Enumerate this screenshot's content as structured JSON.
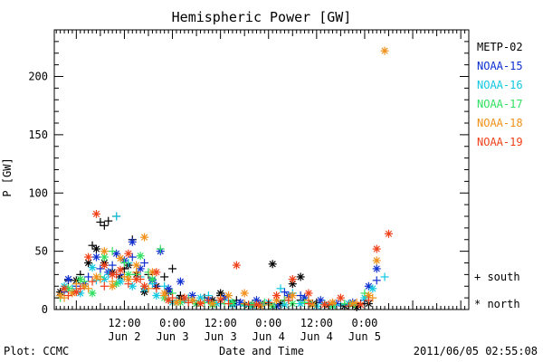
{
  "chart_data": {
    "type": "scatter",
    "title": "Hemispheric Power [GW]",
    "ylabel": "P [GW]",
    "xlabel": "Date and Time",
    "x_unit": "hours from 2011-06-01 00:00 UT",
    "xlim": [
      18.5,
      122
    ],
    "ylim": [
      0,
      240
    ],
    "y_ticks": [
      0,
      50,
      100,
      150,
      200
    ],
    "x_ticks": [
      {
        "x": 36,
        "time": "12:00",
        "date": "Jun 2"
      },
      {
        "x": 48,
        "time": "0:00",
        "date": "Jun 3"
      },
      {
        "x": 60,
        "time": "12:00",
        "date": "Jun 3"
      },
      {
        "x": 72,
        "time": "0:00",
        "date": "Jun 4"
      },
      {
        "x": 84,
        "time": "12:00",
        "date": "Jun 4"
      },
      {
        "x": 96,
        "time": "0:00",
        "date": "Jun 5"
      }
    ],
    "grid": false,
    "marker_legend": [
      {
        "marker": "plus",
        "label": "+ south"
      },
      {
        "marker": "star",
        "label": "* north"
      }
    ],
    "series": [
      {
        "name": "METP-02",
        "color": "#000000",
        "south": [
          [
            22,
            25
          ],
          [
            25,
            30
          ],
          [
            28,
            55
          ],
          [
            30,
            75
          ],
          [
            31,
            72
          ],
          [
            32,
            76
          ],
          [
            34,
            80
          ],
          [
            36,
            35
          ],
          [
            38,
            60
          ],
          [
            42,
            30
          ],
          [
            46,
            28
          ],
          [
            48,
            35
          ],
          [
            50,
            12
          ],
          [
            53,
            8
          ],
          [
            56,
            10
          ],
          [
            60,
            12
          ],
          [
            64,
            8
          ],
          [
            68,
            5
          ],
          [
            72,
            5
          ],
          [
            76,
            8
          ],
          [
            80,
            8
          ],
          [
            84,
            6
          ],
          [
            88,
            5
          ],
          [
            92,
            4
          ],
          [
            95,
            5
          ]
        ],
        "north": [
          [
            20,
            15
          ],
          [
            24,
            25
          ],
          [
            27,
            40
          ],
          [
            29,
            52
          ],
          [
            31,
            40
          ],
          [
            33,
            32
          ],
          [
            35,
            28
          ],
          [
            37,
            38
          ],
          [
            39,
            30
          ],
          [
            41,
            15
          ],
          [
            44,
            20
          ],
          [
            47,
            15
          ],
          [
            50,
            10
          ],
          [
            54,
            5
          ],
          [
            58,
            8
          ],
          [
            60,
            14
          ],
          [
            63,
            5
          ],
          [
            67,
            4
          ],
          [
            70,
            5
          ],
          [
            73,
            39
          ],
          [
            75,
            5
          ],
          [
            78,
            22
          ],
          [
            80,
            28
          ],
          [
            83,
            5
          ],
          [
            87,
            4
          ],
          [
            91,
            3
          ],
          [
            94,
            2
          ],
          [
            97,
            5
          ]
        ]
      },
      {
        "name": "NOAA-15",
        "color": "#1030d0",
        "south": [
          [
            21,
            15
          ],
          [
            24,
            20
          ],
          [
            27,
            28
          ],
          [
            30,
            35
          ],
          [
            33,
            38
          ],
          [
            35,
            30
          ],
          [
            38,
            45
          ],
          [
            41,
            40
          ],
          [
            44,
            20
          ],
          [
            47,
            15
          ],
          [
            50,
            8
          ],
          [
            55,
            6
          ],
          [
            60,
            5
          ],
          [
            64,
            4
          ],
          [
            70,
            5
          ],
          [
            76,
            15
          ],
          [
            80,
            12
          ],
          [
            86,
            5
          ],
          [
            92,
            4
          ],
          [
            96,
            8
          ],
          [
            99,
            25
          ]
        ],
        "north": [
          [
            22,
            26
          ],
          [
            26,
            22
          ],
          [
            29,
            45
          ],
          [
            32,
            32
          ],
          [
            34,
            48
          ],
          [
            36,
            42
          ],
          [
            38,
            58
          ],
          [
            40,
            35
          ],
          [
            43,
            25
          ],
          [
            45,
            50
          ],
          [
            47,
            18
          ],
          [
            50,
            24
          ],
          [
            53,
            12
          ],
          [
            57,
            8
          ],
          [
            61,
            10
          ],
          [
            65,
            6
          ],
          [
            69,
            8
          ],
          [
            74,
            3
          ],
          [
            77,
            12
          ],
          [
            81,
            10
          ],
          [
            85,
            8
          ],
          [
            89,
            5
          ],
          [
            93,
            6
          ],
          [
            97,
            20
          ],
          [
            99,
            35
          ]
        ]
      },
      {
        "name": "NOAA-16",
        "color": "#10c8e0",
        "south": [
          [
            20,
            12
          ],
          [
            23,
            18
          ],
          [
            26,
            20
          ],
          [
            29,
            25
          ],
          [
            32,
            30
          ],
          [
            34,
            80
          ],
          [
            37,
            40
          ],
          [
            40,
            28
          ],
          [
            43,
            22
          ],
          [
            46,
            20
          ],
          [
            49,
            8
          ],
          [
            52,
            10
          ],
          [
            57,
            12
          ],
          [
            62,
            8
          ],
          [
            66,
            3
          ],
          [
            71,
            4
          ],
          [
            75,
            18
          ],
          [
            78,
            14
          ],
          [
            82,
            6
          ],
          [
            86,
            5
          ],
          [
            90,
            4
          ],
          [
            93,
            5
          ],
          [
            97,
            8
          ],
          [
            101,
            28
          ]
        ],
        "north": [
          [
            21,
            20
          ],
          [
            25,
            14
          ],
          [
            28,
            36
          ],
          [
            31,
            26
          ],
          [
            35,
            24
          ],
          [
            38,
            20
          ],
          [
            41,
            18
          ],
          [
            44,
            12
          ],
          [
            48,
            6
          ],
          [
            51,
            8
          ],
          [
            55,
            10
          ],
          [
            59,
            5
          ],
          [
            63,
            4
          ],
          [
            68,
            3
          ],
          [
            72,
            6
          ],
          [
            76,
            4
          ],
          [
            80,
            5
          ],
          [
            84,
            3
          ],
          [
            88,
            4
          ],
          [
            92,
            5
          ],
          [
            96,
            10
          ],
          [
            98,
            18
          ]
        ]
      },
      {
        "name": "NOAA-17",
        "color": "#30e060",
        "south": [
          [
            20,
            10
          ],
          [
            23,
            16
          ],
          [
            26,
            24
          ],
          [
            30,
            28
          ],
          [
            33,
            50
          ],
          [
            36,
            40
          ],
          [
            39,
            30
          ],
          [
            42,
            32
          ],
          [
            45,
            52
          ],
          [
            48,
            14
          ],
          [
            52,
            8
          ],
          [
            56,
            6
          ],
          [
            61,
            5
          ],
          [
            66,
            4
          ],
          [
            71,
            6
          ],
          [
            76,
            8
          ],
          [
            81,
            6
          ],
          [
            86,
            4
          ],
          [
            91,
            5
          ],
          [
            96,
            14
          ]
        ],
        "north": [
          [
            22,
            18
          ],
          [
            25,
            26
          ],
          [
            28,
            14
          ],
          [
            31,
            45
          ],
          [
            34,
            22
          ],
          [
            37,
            30
          ],
          [
            40,
            46
          ],
          [
            43,
            26
          ],
          [
            46,
            10
          ],
          [
            50,
            6
          ],
          [
            54,
            5
          ],
          [
            58,
            4
          ],
          [
            63,
            6
          ],
          [
            68,
            4
          ],
          [
            73,
            3
          ],
          [
            78,
            5
          ],
          [
            83,
            4
          ],
          [
            88,
            3
          ],
          [
            93,
            4
          ]
        ]
      },
      {
        "name": "NOAA-18",
        "color": "#f09018",
        "south": [
          [
            21,
            10
          ],
          [
            24,
            22
          ],
          [
            27,
            18
          ],
          [
            30,
            26
          ],
          [
            33,
            24
          ],
          [
            36,
            28
          ],
          [
            39,
            32
          ],
          [
            42,
            18
          ],
          [
            46,
            12
          ],
          [
            50,
            8
          ],
          [
            55,
            6
          ],
          [
            60,
            10
          ],
          [
            66,
            5
          ],
          [
            72,
            4
          ],
          [
            77,
            10
          ],
          [
            82,
            8
          ],
          [
            88,
            5
          ],
          [
            94,
            6
          ],
          [
            98,
            10
          ]
        ],
        "north": [
          [
            20,
            12
          ],
          [
            23,
            14
          ],
          [
            26,
            20
          ],
          [
            29,
            28
          ],
          [
            31,
            50
          ],
          [
            33,
            20
          ],
          [
            35,
            44
          ],
          [
            37,
            26
          ],
          [
            39,
            38
          ],
          [
            41,
            62
          ],
          [
            43,
            32
          ],
          [
            46,
            14
          ],
          [
            49,
            6
          ],
          [
            53,
            8
          ],
          [
            58,
            5
          ],
          [
            62,
            12
          ],
          [
            66,
            14
          ],
          [
            70,
            3
          ],
          [
            74,
            8
          ],
          [
            78,
            12
          ],
          [
            83,
            4
          ],
          [
            88,
            6
          ],
          [
            93,
            5
          ],
          [
            97,
            12
          ],
          [
            99,
            42
          ],
          [
            101,
            222
          ]
        ]
      },
      {
        "name": "NOAA-19",
        "color": "#f04018",
        "south": [
          [
            22,
            12
          ],
          [
            25,
            18
          ],
          [
            28,
            24
          ],
          [
            31,
            20
          ],
          [
            34,
            30
          ],
          [
            37,
            22
          ],
          [
            40,
            26
          ],
          [
            44,
            18
          ],
          [
            48,
            10
          ],
          [
            52,
            6
          ],
          [
            57,
            8
          ],
          [
            62,
            5
          ],
          [
            67,
            4
          ],
          [
            72,
            6
          ],
          [
            77,
            8
          ],
          [
            82,
            5
          ],
          [
            87,
            4
          ],
          [
            92,
            3
          ],
          [
            97,
            8
          ]
        ],
        "north": [
          [
            21,
            18
          ],
          [
            24,
            15
          ],
          [
            27,
            45
          ],
          [
            29,
            82
          ],
          [
            31,
            38
          ],
          [
            33,
            30
          ],
          [
            35,
            34
          ],
          [
            37,
            48
          ],
          [
            39,
            26
          ],
          [
            41,
            20
          ],
          [
            44,
            32
          ],
          [
            47,
            8
          ],
          [
            51,
            10
          ],
          [
            55,
            5
          ],
          [
            60,
            8
          ],
          [
            64,
            38
          ],
          [
            69,
            4
          ],
          [
            74,
            12
          ],
          [
            78,
            26
          ],
          [
            82,
            14
          ],
          [
            86,
            4
          ],
          [
            90,
            10
          ],
          [
            95,
            4
          ],
          [
            99,
            52
          ],
          [
            102,
            65
          ]
        ]
      }
    ]
  },
  "footer": {
    "plot_source": "Plot: CCMC",
    "timestamp": "2011/06/05 02:55:08"
  }
}
